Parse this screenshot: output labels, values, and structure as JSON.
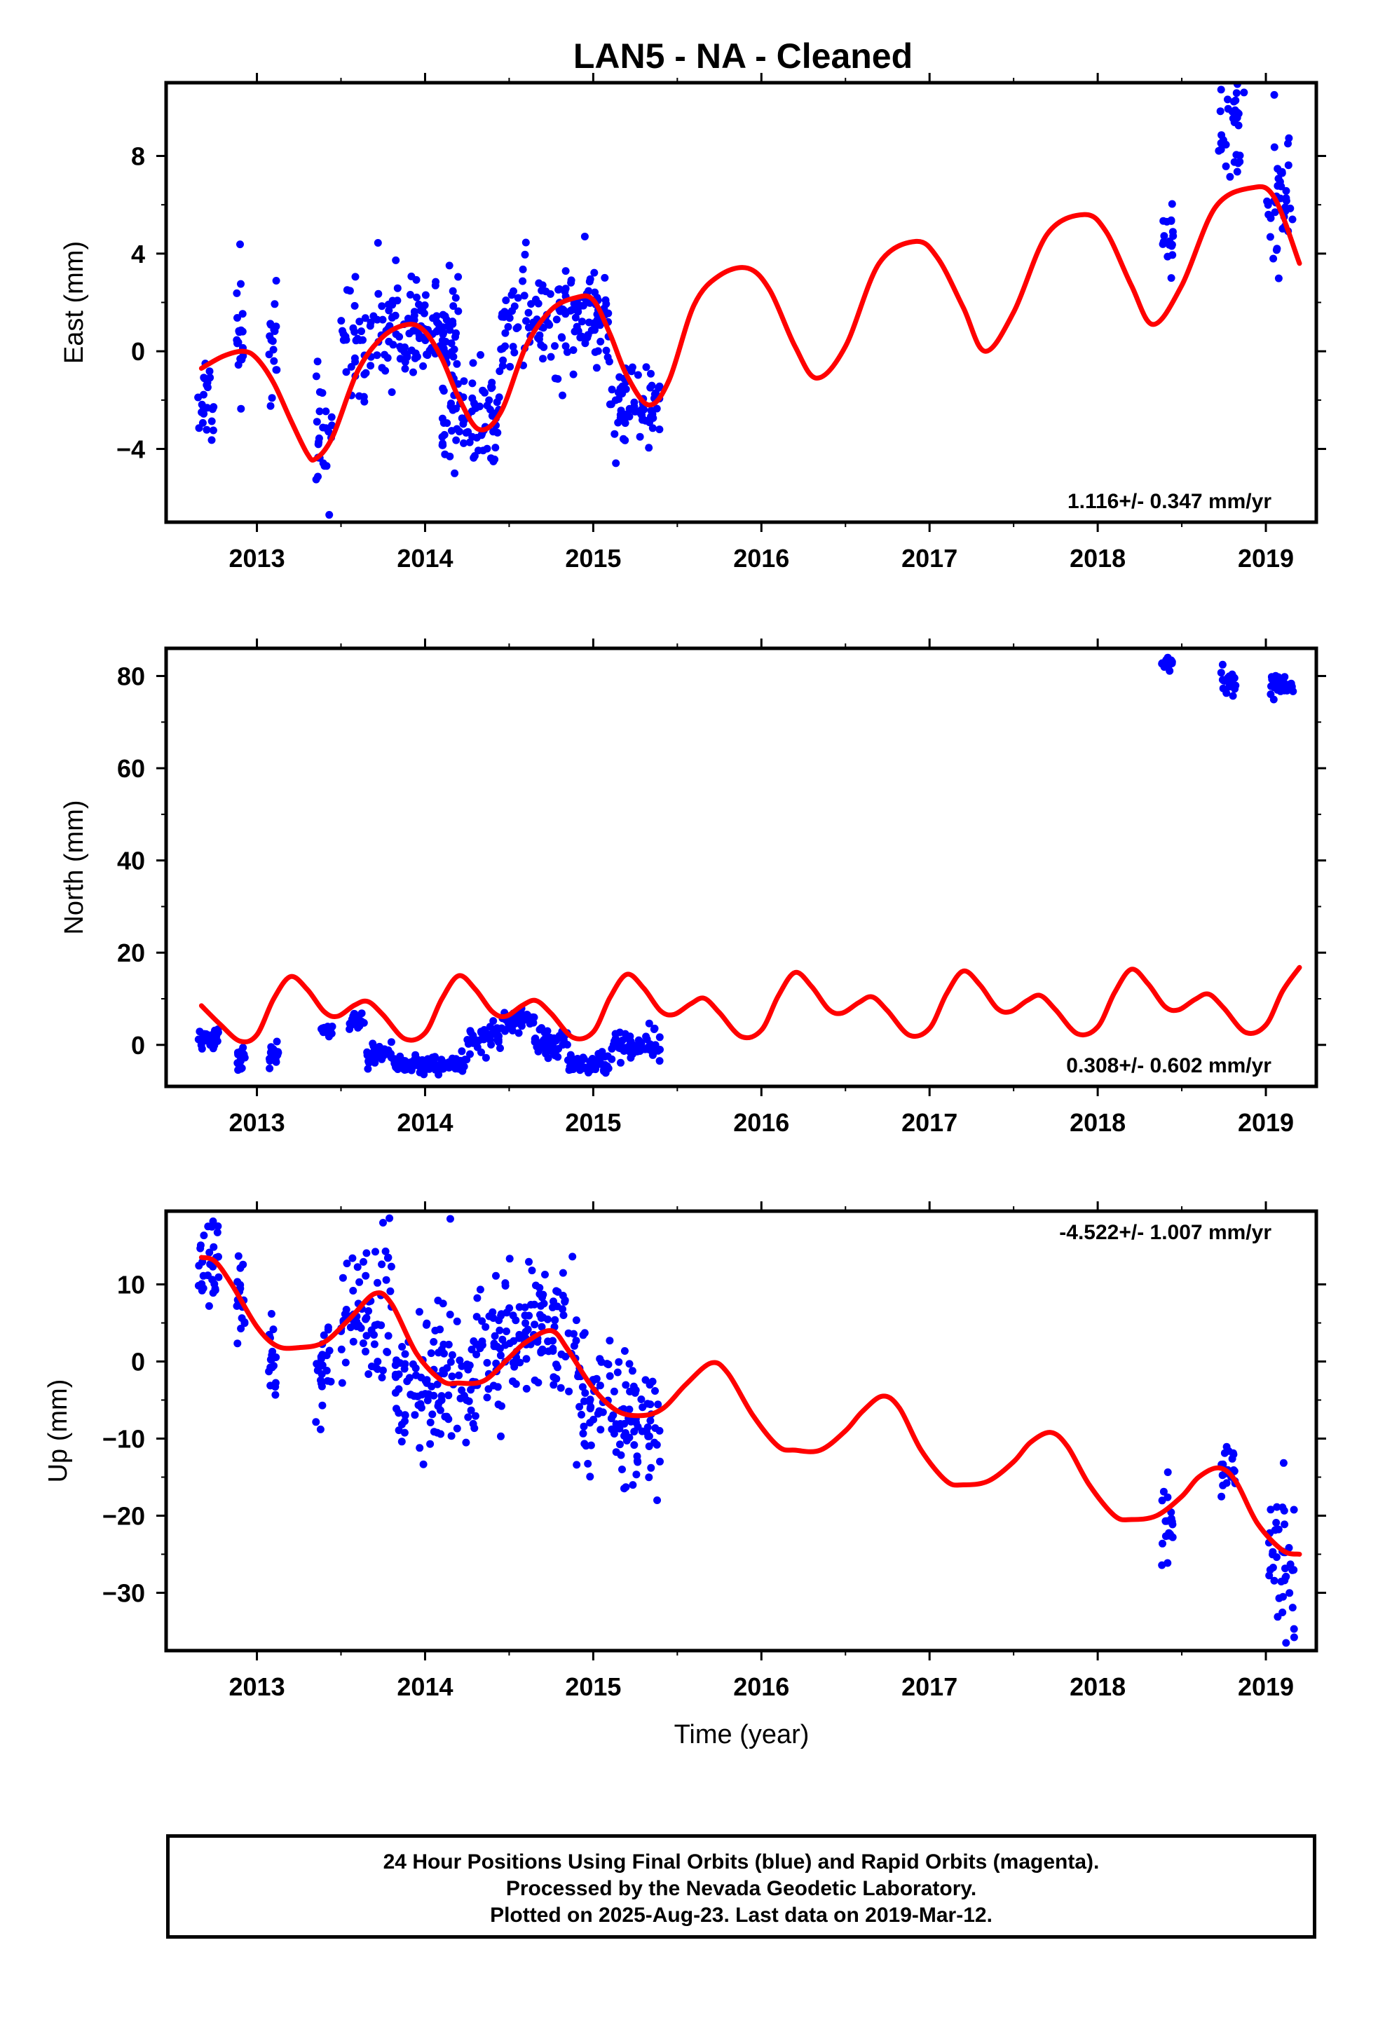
{
  "title": "LAN5  - NA - Cleaned",
  "colors": {
    "data_points": "#0000ff",
    "model_fit": "#ff0000",
    "frame": "#000000"
  },
  "chart_data": [
    {
      "type": "scatter",
      "panel": "east",
      "ylabel": "East (mm)",
      "xlabel": "",
      "xlim": [
        2012.46,
        2019.3
      ],
      "ylim": [
        -7,
        11
      ],
      "xticks": [
        2013,
        2014,
        2015,
        2016,
        2017,
        2018,
        2019
      ],
      "xtick_labels": [
        "2013",
        "2014",
        "2015",
        "2016",
        "2017",
        "2018",
        "2019"
      ],
      "yticks": [
        -4,
        0,
        4,
        8
      ],
      "ytick_labels": [
        "−4",
        "0",
        "4",
        "8"
      ],
      "rate_label": "1.116+/- 0.347 mm/yr",
      "rate_label_position": "bottom-right",
      "series": [
        {
          "name": "",
          "kind": "points",
          "color": "#0000ff",
          "clusters": [
            {
              "x": [
                2012.65,
                2012.75
              ],
              "mean": -1.8,
              "sd": 0.9
            },
            {
              "x": [
                2012.88,
                2012.92
              ],
              "mean": 0.3,
              "sd": 1.4
            },
            {
              "x": [
                2013.07,
                2013.12
              ],
              "mean": 0.2,
              "sd": 1.5
            },
            {
              "x": [
                2013.35,
                2013.45
              ],
              "mean": -3.3,
              "sd": 1.3
            },
            {
              "x": [
                2013.5,
                2014.2
              ],
              "mean": 0.8,
              "sd": 1.1
            },
            {
              "x": [
                2014.1,
                2014.45
              ],
              "mean": -2.6,
              "sd": 1.0
            },
            {
              "x": [
                2014.45,
                2015.1
              ],
              "mean": 1.3,
              "sd": 1.0
            },
            {
              "x": [
                2015.1,
                2015.4
              ],
              "mean": -2.2,
              "sd": 1.0
            },
            {
              "x": [
                2018.38,
                2018.45
              ],
              "mean": 4.6,
              "sd": 0.8
            },
            {
              "x": [
                2018.72,
                2018.85
              ],
              "mean": 9.2,
              "sd": 0.9
            },
            {
              "x": [
                2019.0,
                2019.16
              ],
              "mean": 6.0,
              "sd": 1.5
            }
          ],
          "highlights": [
            {
              "x": 2013.43,
              "y": -6.7
            },
            {
              "x": 2018.87,
              "y": 10.6
            },
            {
              "x": 2019.05,
              "y": 10.5
            },
            {
              "x": 2014.95,
              "y": 4.7
            }
          ]
        },
        {
          "name": "",
          "kind": "line",
          "color": "#ff0000",
          "x": [
            2012.67,
            2012.8,
            2012.92,
            2013.0,
            2013.1,
            2013.2,
            2013.3,
            2013.35,
            2013.45,
            2013.6,
            2013.75,
            2013.9,
            2014.0,
            2014.1,
            2014.2,
            2014.32,
            2014.45,
            2014.6,
            2014.75,
            2014.9,
            2015.0,
            2015.1,
            2015.2,
            2015.33,
            2015.45,
            2015.6,
            2015.75,
            2015.92,
            2016.05,
            2016.2,
            2016.33,
            2016.5,
            2016.7,
            2016.92,
            2017.05,
            2017.2,
            2017.33,
            2017.5,
            2017.7,
            2017.92,
            2018.05,
            2018.2,
            2018.33,
            2018.5,
            2018.7,
            2018.92,
            2019.05,
            2019.2
          ],
          "y": [
            -0.7,
            -0.2,
            0.0,
            -0.3,
            -1.3,
            -2.8,
            -4.2,
            -4.4,
            -3.5,
            -0.8,
            0.6,
            1.1,
            0.8,
            -0.3,
            -1.9,
            -3.2,
            -2.5,
            0.2,
            1.7,
            2.2,
            2.1,
            0.7,
            -1.0,
            -2.2,
            -1.2,
            1.9,
            3.1,
            3.4,
            2.5,
            0.2,
            -1.1,
            0.2,
            3.6,
            4.5,
            3.8,
            1.8,
            0.0,
            1.6,
            4.8,
            5.6,
            4.9,
            2.7,
            1.1,
            2.7,
            5.9,
            6.7,
            6.3,
            3.6
          ]
        }
      ]
    },
    {
      "type": "scatter",
      "panel": "north",
      "ylabel": "North (mm)",
      "xlabel": "",
      "xlim": [
        2012.46,
        2019.3
      ],
      "ylim": [
        -9,
        86
      ],
      "xticks": [
        2013,
        2014,
        2015,
        2016,
        2017,
        2018,
        2019
      ],
      "xtick_labels": [
        "2013",
        "2014",
        "2015",
        "2016",
        "2017",
        "2018",
        "2019"
      ],
      "yticks": [
        0,
        20,
        40,
        60,
        80
      ],
      "ytick_labels": [
        "0",
        "20",
        "40",
        "60",
        "80"
      ],
      "rate_label": "0.308+/- 0.602 mm/yr",
      "rate_label_position": "bottom-right",
      "series": [
        {
          "name": "",
          "kind": "points",
          "color": "#0000ff",
          "clusters": [
            {
              "x": [
                2012.65,
                2012.78
              ],
              "mean": 1.0,
              "sd": 1.3
            },
            {
              "x": [
                2012.88,
                2012.93
              ],
              "mean": -3.0,
              "sd": 1.0
            },
            {
              "x": [
                2013.07,
                2013.13
              ],
              "mean": -2.0,
              "sd": 1.3
            },
            {
              "x": [
                2013.38,
                2013.45
              ],
              "mean": 3.0,
              "sd": 0.8
            },
            {
              "x": [
                2013.55,
                2013.65
              ],
              "mean": 5.0,
              "sd": 1.0
            },
            {
              "x": [
                2013.65,
                2013.8
              ],
              "mean": -1.5,
              "sd": 1.5
            },
            {
              "x": [
                2013.8,
                2014.25
              ],
              "mean": -4.3,
              "sd": 0.9
            },
            {
              "x": [
                2014.25,
                2014.45
              ],
              "mean": 1.5,
              "sd": 1.4
            },
            {
              "x": [
                2014.45,
                2014.65
              ],
              "mean": 5.0,
              "sd": 1.0
            },
            {
              "x": [
                2014.65,
                2014.85
              ],
              "mean": 0.5,
              "sd": 1.5
            },
            {
              "x": [
                2014.85,
                2015.1
              ],
              "mean": -4.2,
              "sd": 1.0
            },
            {
              "x": [
                2015.1,
                2015.4
              ],
              "mean": -0.5,
              "sd": 1.5
            },
            {
              "x": [
                2018.38,
                2018.45
              ],
              "mean": 83.0,
              "sd": 0.8
            },
            {
              "x": [
                2018.73,
                2018.82
              ],
              "mean": 79.0,
              "sd": 1.2
            },
            {
              "x": [
                2019.02,
                2019.17
              ],
              "mean": 77.5,
              "sd": 1.2
            }
          ],
          "highlights": []
        },
        {
          "name": "",
          "kind": "line",
          "color": "#ff0000",
          "x": [
            2012.67,
            2012.78,
            2012.9,
            2013.0,
            2013.1,
            2013.2,
            2013.3,
            2013.4,
            2013.48,
            2013.58,
            2013.66,
            2013.75,
            2013.88,
            2014.0,
            2014.1,
            2014.2,
            2014.3,
            2014.4,
            2014.48,
            2014.58,
            2014.66,
            2014.75,
            2014.88,
            2015.0,
            2015.1,
            2015.2,
            2015.3,
            2015.4,
            2015.48,
            2015.58,
            2015.66,
            2015.75,
            2015.88,
            2016.0,
            2016.1,
            2016.2,
            2016.3,
            2016.4,
            2016.48,
            2016.58,
            2016.66,
            2016.75,
            2016.88,
            2017.0,
            2017.1,
            2017.2,
            2017.3,
            2017.4,
            2017.48,
            2017.58,
            2017.66,
            2017.75,
            2017.88,
            2018.0,
            2018.1,
            2018.2,
            2018.3,
            2018.4,
            2018.48,
            2018.58,
            2018.66,
            2018.75,
            2018.88,
            2019.0,
            2019.1,
            2019.2
          ],
          "y": [
            8.5,
            4.5,
            0.8,
            2.2,
            10.0,
            14.8,
            12.0,
            7.2,
            6.2,
            8.6,
            9.4,
            6.5,
            1.3,
            2.6,
            10.0,
            15.0,
            12.0,
            7.2,
            6.2,
            8.6,
            9.6,
            6.8,
            1.6,
            2.8,
            10.3,
            15.3,
            12.3,
            7.4,
            6.6,
            8.9,
            10.1,
            7.0,
            1.8,
            3.2,
            10.6,
            15.7,
            12.6,
            7.7,
            6.9,
            9.2,
            10.4,
            7.4,
            2.1,
            3.6,
            11.0,
            16.0,
            13.0,
            8.0,
            7.2,
            9.6,
            10.7,
            7.6,
            2.4,
            3.9,
            11.3,
            16.4,
            13.2,
            8.3,
            7.6,
            9.9,
            11.0,
            8.0,
            2.7,
            4.3,
            11.7,
            16.8
          ]
        }
      ]
    },
    {
      "type": "scatter",
      "panel": "up",
      "ylabel": "Up (mm)",
      "xlabel": "Time (year)",
      "xlim": [
        2012.46,
        2019.3
      ],
      "ylim": [
        -37.5,
        19.5
      ],
      "xticks": [
        2013,
        2014,
        2015,
        2016,
        2017,
        2018,
        2019
      ],
      "xtick_labels": [
        "2013",
        "2014",
        "2015",
        "2016",
        "2017",
        "2018",
        "2019"
      ],
      "yticks": [
        -30,
        -20,
        -10,
        0,
        10
      ],
      "ytick_labels": [
        "−30",
        "−20",
        "−10",
        "0",
        "10"
      ],
      "rate_label": "-4.522+/- 1.007 mm/yr",
      "rate_label_position": "top-right",
      "series": [
        {
          "name": "",
          "kind": "points",
          "color": "#0000ff",
          "clusters": [
            {
              "x": [
                2012.65,
                2012.78
              ],
              "mean": 12.0,
              "sd": 3.5
            },
            {
              "x": [
                2012.88,
                2012.93
              ],
              "mean": 8.0,
              "sd": 3.0
            },
            {
              "x": [
                2013.07,
                2013.12
              ],
              "mean": 0.0,
              "sd": 3.5
            },
            {
              "x": [
                2013.35,
                2013.45
              ],
              "mean": -0.5,
              "sd": 3.0
            },
            {
              "x": [
                2013.5,
                2013.8
              ],
              "mean": 6.5,
              "sd": 4.5
            },
            {
              "x": [
                2013.8,
                2014.3
              ],
              "mean": -2.5,
              "sd": 4.5
            },
            {
              "x": [
                2014.3,
                2014.6
              ],
              "mean": 2.0,
              "sd": 4.0
            },
            {
              "x": [
                2014.6,
                2014.9
              ],
              "mean": 5.0,
              "sd": 4.0
            },
            {
              "x": [
                2014.9,
                2015.1
              ],
              "mean": -4.5,
              "sd": 4.5
            },
            {
              "x": [
                2015.1,
                2015.4
              ],
              "mean": -8.0,
              "sd": 4.0
            },
            {
              "x": [
                2018.38,
                2018.45
              ],
              "mean": -20.5,
              "sd": 3.5
            },
            {
              "x": [
                2018.73,
                2018.82
              ],
              "mean": -13.5,
              "sd": 2.2
            },
            {
              "x": [
                2019.0,
                2019.17
              ],
              "mean": -25.0,
              "sd": 5.0
            }
          ],
          "highlights": [
            {
              "x": 2014.15,
              "y": 18.5
            },
            {
              "x": 2013.75,
              "y": 18.0
            },
            {
              "x": 2019.12,
              "y": -36.5
            },
            {
              "x": 2015.38,
              "y": -18.0
            }
          ]
        },
        {
          "name": "",
          "kind": "line",
          "color": "#ff0000",
          "x": [
            2012.67,
            2012.75,
            2012.85,
            2013.0,
            2013.12,
            2013.25,
            2013.4,
            2013.55,
            2013.7,
            2013.8,
            2013.95,
            2014.1,
            2014.2,
            2014.35,
            2014.5,
            2014.6,
            2014.75,
            2014.85,
            2015.0,
            2015.15,
            2015.3,
            2015.42,
            2015.55,
            2015.7,
            2015.8,
            2015.95,
            2016.1,
            2016.2,
            2016.35,
            2016.5,
            2016.6,
            2016.72,
            2016.82,
            2016.95,
            2017.1,
            2017.2,
            2017.35,
            2017.5,
            2017.6,
            2017.72,
            2017.82,
            2017.95,
            2018.1,
            2018.2,
            2018.35,
            2018.5,
            2018.6,
            2018.72,
            2018.82,
            2018.95,
            2019.1,
            2019.2
          ],
          "y": [
            13.5,
            13.0,
            10.0,
            4.5,
            2.0,
            1.8,
            2.5,
            5.5,
            8.8,
            7.5,
            1.0,
            -2.5,
            -2.8,
            -2.5,
            0.5,
            2.5,
            4.0,
            1.5,
            -3.5,
            -6.5,
            -7.0,
            -6.0,
            -3.0,
            -0.2,
            -1.5,
            -7.0,
            -11.0,
            -11.5,
            -11.5,
            -9.0,
            -6.5,
            -4.5,
            -6.0,
            -11.5,
            -15.5,
            -16.0,
            -15.5,
            -13.0,
            -10.5,
            -9.2,
            -11.0,
            -16.0,
            -20.0,
            -20.5,
            -20.0,
            -17.5,
            -15.0,
            -13.8,
            -15.5,
            -21.0,
            -24.5,
            -25.0
          ]
        }
      ]
    }
  ],
  "footer": {
    "line1": "24 Hour Positions Using Final Orbits (blue) and Rapid Orbits (magenta).",
    "line2": "Processed by the Nevada Geodetic Laboratory.",
    "line3": "Plotted on 2025-Aug-23. Last data on 2019-Mar-12."
  }
}
